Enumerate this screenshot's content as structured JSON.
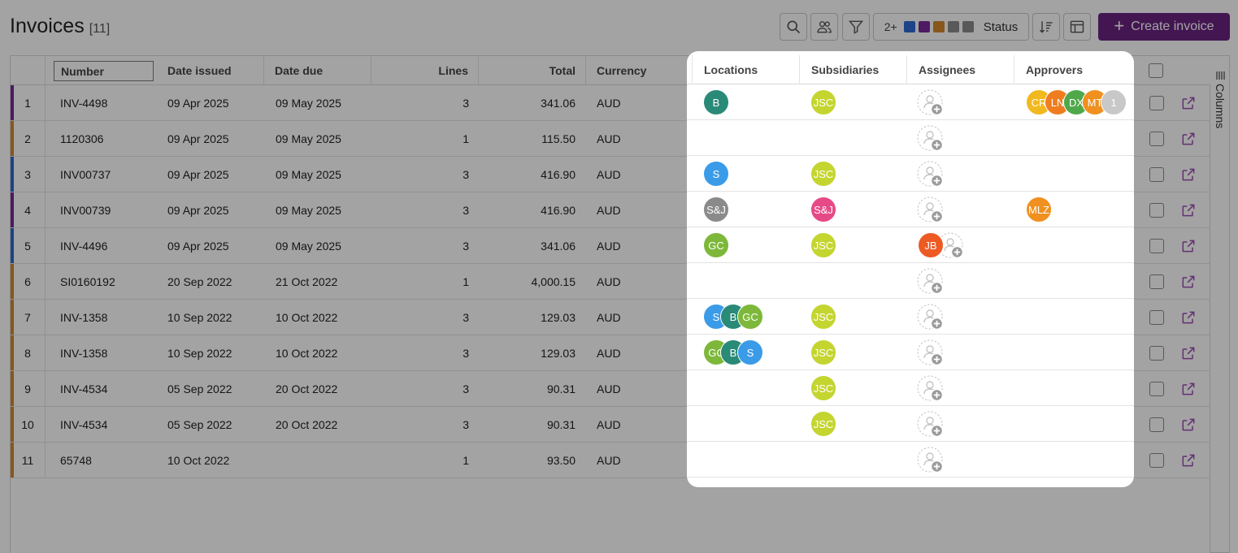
{
  "header": {
    "title": "Invoices",
    "count": "[11]",
    "status_filter": {
      "count_label": "2+",
      "colors": [
        "#2d6bd2",
        "#7b2a9a",
        "#d4892d",
        "#8b8b8b",
        "#8b8b8b"
      ],
      "label": "Status"
    },
    "create_label": "Create invoice"
  },
  "table": {
    "columns": {
      "number": "Number",
      "date_issued": "Date issued",
      "date_due": "Date due",
      "lines": "Lines",
      "total": "Total",
      "currency": "Currency"
    },
    "rows": [
      {
        "index": "1",
        "number": "INV-4498",
        "date_issued": "09 Apr 2025",
        "date_due": "09 May 2025",
        "lines": "3",
        "total": "341.06",
        "currency": "AUD",
        "color": "#7b2a9a"
      },
      {
        "index": "2",
        "number": "1120306",
        "date_issued": "09 Apr 2025",
        "date_due": "09 May 2025",
        "lines": "1",
        "total": "115.50",
        "currency": "AUD",
        "color": "#d4892d"
      },
      {
        "index": "3",
        "number": "INV00737",
        "date_issued": "09 Apr 2025",
        "date_due": "09 May 2025",
        "lines": "3",
        "total": "416.90",
        "currency": "AUD",
        "color": "#2d6bd2"
      },
      {
        "index": "4",
        "number": "INV00739",
        "date_issued": "09 Apr 2025",
        "date_due": "09 May 2025",
        "lines": "3",
        "total": "416.90",
        "currency": "AUD",
        "color": "#7b2a9a"
      },
      {
        "index": "5",
        "number": "INV-4496",
        "date_issued": "09 Apr 2025",
        "date_due": "09 May 2025",
        "lines": "3",
        "total": "341.06",
        "currency": "AUD",
        "color": "#2d6bd2"
      },
      {
        "index": "6",
        "number": "SI0160192",
        "date_issued": "20 Sep 2022",
        "date_due": "21 Oct 2022",
        "lines": "1",
        "total": "4,000.15",
        "currency": "AUD",
        "color": "#d4892d"
      },
      {
        "index": "7",
        "number": "INV-1358",
        "date_issued": "10 Sep 2022",
        "date_due": "10 Oct 2022",
        "lines": "3",
        "total": "129.03",
        "currency": "AUD",
        "color": "#d4892d"
      },
      {
        "index": "8",
        "number": "INV-1358",
        "date_issued": "10 Sep 2022",
        "date_due": "10 Oct 2022",
        "lines": "3",
        "total": "129.03",
        "currency": "AUD",
        "color": "#d4892d"
      },
      {
        "index": "9",
        "number": "INV-4534",
        "date_issued": "05 Sep 2022",
        "date_due": "20 Oct 2022",
        "lines": "3",
        "total": "90.31",
        "currency": "AUD",
        "color": "#d4892d"
      },
      {
        "index": "10",
        "number": "INV-4534",
        "date_issued": "05 Sep 2022",
        "date_due": "20 Oct 2022",
        "lines": "3",
        "total": "90.31",
        "currency": "AUD",
        "color": "#d4892d"
      },
      {
        "index": "11",
        "number": "65748",
        "date_issued": "10 Oct 2022",
        "date_due": "",
        "lines": "1",
        "total": "93.50",
        "currency": "AUD",
        "color": "#d4892d"
      }
    ]
  },
  "columns_tab": {
    "label": "Columns"
  },
  "popup": {
    "columns": {
      "locations": "Locations",
      "subsidiaries": "Subsidiaries",
      "assignees": "Assignees",
      "approvers": "Approvers"
    },
    "rows": [
      {
        "locations": [
          {
            "initials": "B",
            "color": "#2a8a78"
          }
        ],
        "subsidiaries": [
          {
            "initials": "JSC",
            "color": "#c4d530"
          }
        ],
        "assignees": [],
        "approvers": [
          {
            "initials": "CR",
            "color": "#f2b81f"
          },
          {
            "initials": "LN",
            "color": "#ef7d1f"
          },
          {
            "initials": "DX",
            "color": "#4fa84a"
          },
          {
            "initials": "MT",
            "color": "#f0901f"
          },
          {
            "initials": "1",
            "color": "#c8c8c8"
          }
        ]
      },
      {
        "locations": [],
        "subsidiaries": [],
        "assignees": [],
        "approvers": []
      },
      {
        "locations": [
          {
            "initials": "S",
            "color": "#3a9be8"
          }
        ],
        "subsidiaries": [
          {
            "initials": "JSC",
            "color": "#c4d530"
          }
        ],
        "assignees": [],
        "approvers": []
      },
      {
        "locations": [
          {
            "initials": "S&J",
            "color": "#8a8a8a"
          }
        ],
        "subsidiaries": [
          {
            "initials": "S&J",
            "color": "#e64a86"
          }
        ],
        "assignees": [],
        "approvers": [
          {
            "initials": "MLZ",
            "color": "#f0901f"
          }
        ]
      },
      {
        "locations": [
          {
            "initials": "GC",
            "color": "#7db83a"
          }
        ],
        "subsidiaries": [
          {
            "initials": "JSC",
            "color": "#c4d530"
          }
        ],
        "assignees": [
          {
            "initials": "JB",
            "color": "#ee5a24"
          }
        ],
        "approvers": []
      },
      {
        "locations": [],
        "subsidiaries": [],
        "assignees": [],
        "approvers": []
      },
      {
        "locations": [
          {
            "initials": "S",
            "color": "#3a9be8"
          },
          {
            "initials": "B",
            "color": "#2a8a78"
          },
          {
            "initials": "GC",
            "color": "#7db83a"
          }
        ],
        "subsidiaries": [
          {
            "initials": "JSC",
            "color": "#c4d530"
          }
        ],
        "assignees": [],
        "approvers": []
      },
      {
        "locations": [
          {
            "initials": "GC",
            "color": "#7db83a"
          },
          {
            "initials": "B",
            "color": "#2a8a78"
          },
          {
            "initials": "S",
            "color": "#3a9be8"
          }
        ],
        "subsidiaries": [
          {
            "initials": "JSC",
            "color": "#c4d530"
          }
        ],
        "assignees": [],
        "approvers": []
      },
      {
        "locations": [],
        "subsidiaries": [
          {
            "initials": "JSC",
            "color": "#c4d530"
          }
        ],
        "assignees": [],
        "approvers": []
      },
      {
        "locations": [],
        "subsidiaries": [
          {
            "initials": "JSC",
            "color": "#c4d530"
          }
        ],
        "assignees": [],
        "approvers": []
      },
      {
        "locations": [],
        "subsidiaries": [],
        "assignees": [],
        "approvers": []
      }
    ]
  }
}
